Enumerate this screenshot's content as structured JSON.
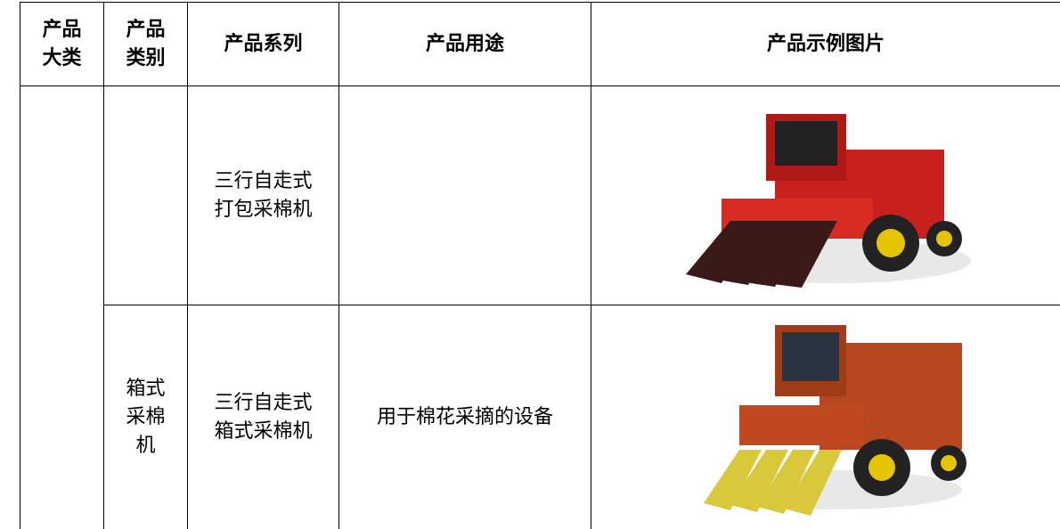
{
  "table": {
    "header": [
      "产品\n大类",
      "产品\n类别",
      "产品系列",
      "产品用途",
      "产品示例图片"
    ],
    "rows": [
      {
        "series": "三行自走式\n打包采棉机"
      },
      {
        "category": "箱式\n采棉\n机",
        "series": "三行自走式\n箱式采棉机",
        "usage": "用于棉花采摘的设备"
      }
    ]
  }
}
